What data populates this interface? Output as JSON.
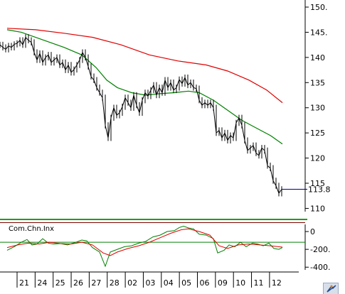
{
  "chart_data": [
    {
      "type": "line",
      "title": "",
      "ylabel": "",
      "ylim": [
        109.5,
        150
      ],
      "y_ticks": [
        110,
        115,
        120,
        125,
        130,
        135,
        140,
        145,
        150
      ],
      "y_tick_labels": [
        "110",
        "115",
        "120",
        "125",
        "130",
        "135",
        "140",
        "145.",
        "150."
      ],
      "x_tick_labels": [
        "21",
        "24",
        "25",
        "26",
        "27",
        "28",
        "02",
        "03",
        "04",
        "05",
        "06",
        "09",
        "10",
        "11",
        "12"
      ],
      "last_value_label": "113.8",
      "price_line_color": "#000000",
      "ma_short_color": "#008000",
      "ma_long_color": "#e00000",
      "last_value_line_color": "#000080",
      "price": [
        [
          0,
          142.5
        ],
        [
          4,
          142.0
        ],
        [
          8,
          141.6
        ],
        [
          12,
          142.3
        ],
        [
          16,
          142.0
        ],
        [
          20,
          142.6
        ],
        [
          24,
          142.8
        ],
        [
          28,
          143.4
        ],
        [
          32,
          142.5
        ],
        [
          36,
          144.0
        ],
        [
          40,
          143.4
        ],
        [
          44,
          143.0
        ],
        [
          48,
          141.0
        ],
        [
          52,
          139.5
        ],
        [
          56,
          140.8
        ],
        [
          60,
          139.0
        ],
        [
          64,
          140.0
        ],
        [
          68,
          140.5
        ],
        [
          72,
          139.0
        ],
        [
          76,
          139.5
        ],
        [
          80,
          140.0
        ],
        [
          84,
          138.5
        ],
        [
          88,
          139.0
        ],
        [
          92,
          137.5
        ],
        [
          96,
          138.5
        ],
        [
          100,
          137.0
        ],
        [
          104,
          137.6
        ],
        [
          108,
          138.5
        ],
        [
          112,
          139.5
        ],
        [
          116,
          141.0
        ],
        [
          120,
          140.0
        ],
        [
          124,
          138.2
        ],
        [
          128,
          136.2
        ],
        [
          132,
          135.5
        ],
        [
          136,
          134.0
        ],
        [
          140,
          133.0
        ],
        [
          144,
          132.0
        ],
        [
          148,
          126.5
        ],
        [
          152,
          124.0
        ],
        [
          156,
          128.0
        ],
        [
          160,
          130.0
        ],
        [
          164,
          128.5
        ],
        [
          168,
          129.0
        ],
        [
          172,
          130.2
        ],
        [
          176,
          132.0
        ],
        [
          180,
          131.0
        ],
        [
          184,
          130.0
        ],
        [
          188,
          132.5
        ],
        [
          192,
          130.5
        ],
        [
          196,
          129.0
        ],
        [
          200,
          131.5
        ],
        [
          204,
          133.0
        ],
        [
          208,
          132.3
        ],
        [
          212,
          133.5
        ],
        [
          216,
          134.5
        ],
        [
          220,
          132.5
        ],
        [
          224,
          134.0
        ],
        [
          228,
          133.0
        ],
        [
          232,
          135.5
        ],
        [
          236,
          134.0
        ],
        [
          240,
          135.0
        ],
        [
          244,
          133.5
        ],
        [
          248,
          134.0
        ],
        [
          252,
          135.6
        ],
        [
          256,
          134.8
        ],
        [
          260,
          136.0
        ],
        [
          264,
          134.5
        ],
        [
          268,
          135.0
        ],
        [
          272,
          134.0
        ],
        [
          276,
          133.8
        ],
        [
          280,
          131.5
        ],
        [
          284,
          130.5
        ],
        [
          288,
          131.0
        ],
        [
          292,
          130.5
        ],
        [
          296,
          131.0
        ],
        [
          300,
          130.0
        ],
        [
          304,
          125.0
        ],
        [
          308,
          125.5
        ],
        [
          312,
          124.0
        ],
        [
          316,
          125.0
        ],
        [
          320,
          123.5
        ],
        [
          324,
          124.5
        ],
        [
          328,
          124.0
        ],
        [
          332,
          127.0
        ],
        [
          336,
          128.0
        ],
        [
          340,
          126.5
        ],
        [
          344,
          123.5
        ],
        [
          348,
          121.5
        ],
        [
          352,
          122.0
        ],
        [
          356,
          122.5
        ],
        [
          360,
          121.0
        ],
        [
          364,
          120.5
        ],
        [
          368,
          122.0
        ],
        [
          372,
          121.5
        ],
        [
          376,
          118.5
        ],
        [
          380,
          118.0
        ],
        [
          384,
          115.5
        ],
        [
          388,
          114.5
        ],
        [
          392,
          113.0
        ],
        [
          396,
          113.8
        ]
      ],
      "ma_short": [
        [
          10,
          145.5
        ],
        [
          30,
          145.0
        ],
        [
          60,
          143.5
        ],
        [
          90,
          142.0
        ],
        [
          115,
          140.5
        ],
        [
          135,
          138.0
        ],
        [
          150,
          135.5
        ],
        [
          165,
          134.0
        ],
        [
          185,
          133.0
        ],
        [
          205,
          132.5
        ],
        [
          225,
          132.8
        ],
        [
          245,
          133.0
        ],
        [
          265,
          133.3
        ],
        [
          280,
          133.0
        ],
        [
          300,
          131.5
        ],
        [
          320,
          129.5
        ],
        [
          340,
          127.5
        ],
        [
          360,
          126.0
        ],
        [
          380,
          124.5
        ],
        [
          397,
          122.8
        ]
      ],
      "ma_long": [
        [
          10,
          145.8
        ],
        [
          50,
          145.5
        ],
        [
          90,
          144.8
        ],
        [
          130,
          144.0
        ],
        [
          170,
          142.5
        ],
        [
          210,
          140.5
        ],
        [
          250,
          139.3
        ],
        [
          290,
          138.5
        ],
        [
          320,
          137.3
        ],
        [
          350,
          135.5
        ],
        [
          375,
          133.5
        ],
        [
          397,
          131.0
        ]
      ]
    },
    {
      "type": "line",
      "title": "Com.Chn.Inx",
      "ylim": [
        -430,
        80
      ],
      "y_ticks": [
        0,
        -200,
        -400
      ],
      "y_tick_labels": [
        "0",
        "-200.",
        "-400."
      ],
      "upper_level": 100,
      "lower_level": -120,
      "upper_level_color": "#800000",
      "lower_level_color": "#008000",
      "series": [
        {
          "color": "#008000",
          "values": [
            [
              10,
              -210
            ],
            [
              20,
              -170
            ],
            [
              30,
              -120
            ],
            [
              38,
              -90
            ],
            [
              45,
              -150
            ],
            [
              52,
              -140
            ],
            [
              60,
              -80
            ],
            [
              68,
              -130
            ],
            [
              75,
              -140
            ],
            [
              85,
              -135
            ],
            [
              95,
              -150
            ],
            [
              105,
              -125
            ],
            [
              115,
              -95
            ],
            [
              122,
              -105
            ],
            [
              130,
              -180
            ],
            [
              140,
              -230
            ],
            [
              148,
              -390
            ],
            [
              155,
              -230
            ],
            [
              165,
              -200
            ],
            [
              175,
              -170
            ],
            [
              185,
              -160
            ],
            [
              195,
              -130
            ],
            [
              205,
              -110
            ],
            [
              215,
              -60
            ],
            [
              225,
              -40
            ],
            [
              235,
              0
            ],
            [
              245,
              10
            ],
            [
              252,
              45
            ],
            [
              258,
              60
            ],
            [
              265,
              40
            ],
            [
              272,
              30
            ],
            [
              280,
              -30
            ],
            [
              290,
              -40
            ],
            [
              300,
              -80
            ],
            [
              306,
              -240
            ],
            [
              315,
              -210
            ],
            [
              322,
              -150
            ],
            [
              330,
              -170
            ],
            [
              338,
              -120
            ],
            [
              346,
              -170
            ],
            [
              355,
              -130
            ],
            [
              362,
              -140
            ],
            [
              370,
              -160
            ],
            [
              378,
              -130
            ],
            [
              385,
              -190
            ],
            [
              392,
              -200
            ],
            [
              397,
              -180
            ]
          ]
        },
        {
          "color": "#e00000",
          "values": [
            [
              10,
              -180
            ],
            [
              25,
              -150
            ],
            [
              40,
              -130
            ],
            [
              55,
              -140
            ],
            [
              70,
              -120
            ],
            [
              85,
              -135
            ],
            [
              100,
              -140
            ],
            [
              115,
              -120
            ],
            [
              130,
              -150
            ],
            [
              145,
              -240
            ],
            [
              155,
              -270
            ],
            [
              165,
              -230
            ],
            [
              180,
              -190
            ],
            [
              195,
              -160
            ],
            [
              210,
              -120
            ],
            [
              225,
              -70
            ],
            [
              240,
              -20
            ],
            [
              255,
              20
            ],
            [
              265,
              30
            ],
            [
              280,
              0
            ],
            [
              295,
              -40
            ],
            [
              308,
              -160
            ],
            [
              320,
              -190
            ],
            [
              335,
              -150
            ],
            [
              350,
              -140
            ],
            [
              365,
              -150
            ],
            [
              380,
              -160
            ],
            [
              397,
              -175
            ]
          ]
        }
      ]
    }
  ]
}
